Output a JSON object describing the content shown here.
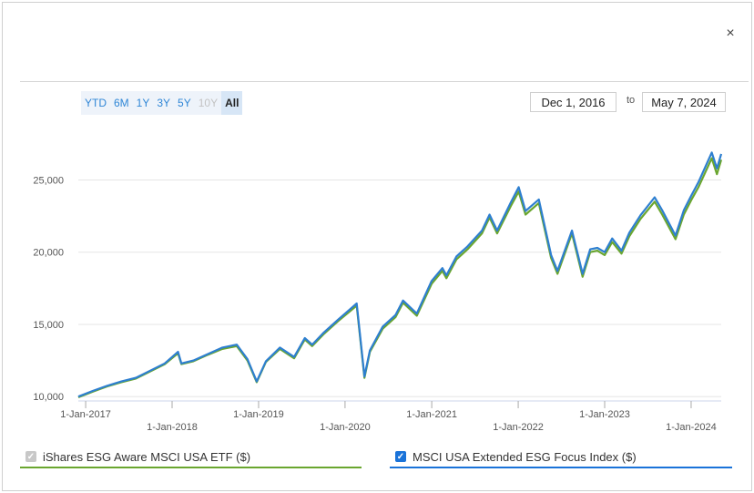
{
  "close_label": "×",
  "range_buttons": [
    {
      "label": "YTD",
      "state": "normal"
    },
    {
      "label": "6M",
      "state": "normal"
    },
    {
      "label": "1Y",
      "state": "normal"
    },
    {
      "label": "3Y",
      "state": "normal"
    },
    {
      "label": "5Y",
      "state": "normal"
    },
    {
      "label": "10Y",
      "state": "disabled"
    },
    {
      "label": "All",
      "state": "active"
    }
  ],
  "date_range": {
    "from": "Dec 1, 2016",
    "to_label": "to",
    "to": "May 7, 2024"
  },
  "legend": {
    "series1_label": "iShares ESG Aware MSCI USA ETF ($)",
    "series2_label": "MSCI USA Extended ESG Focus Index ($)"
  },
  "colors": {
    "series1": "#6aa62f",
    "series2": "#2e7fd0",
    "grid": "#e6e6e6"
  },
  "chart_data": {
    "type": "line",
    "title": "",
    "xlabel": "",
    "ylabel": "",
    "ylim": [
      9700,
      28500
    ],
    "xlim": [
      "2016-12-01",
      "2024-05-07"
    ],
    "yticks": [
      10000,
      15000,
      20000,
      25000
    ],
    "ytick_labels": [
      "10,000",
      "15,000",
      "20,000",
      "25,000"
    ],
    "xticks": [
      "2017-01-01",
      "2018-01-01",
      "2019-01-01",
      "2020-01-01",
      "2021-01-01",
      "2022-01-01",
      "2023-01-01",
      "2024-01-01"
    ],
    "xtick_labels": [
      "1-Jan-2017",
      "1-Jan-2018",
      "1-Jan-2019",
      "1-Jan-2020",
      "1-Jan-2021",
      "1-Jan-2022",
      "1-Jan-2023",
      "1-Jan-2024"
    ],
    "grid": true,
    "legend_position": "bottom",
    "series": [
      {
        "name": "iShares ESG Aware MSCI USA ETF ($)",
        "x": [
          "2016-12-01",
          "2017-02-01",
          "2017-04-01",
          "2017-06-01",
          "2017-08-01",
          "2017-10-01",
          "2017-12-01",
          "2018-01-26",
          "2018-02-09",
          "2018-04-01",
          "2018-06-01",
          "2018-08-01",
          "2018-10-01",
          "2018-11-15",
          "2018-12-24",
          "2019-02-01",
          "2019-04-01",
          "2019-05-31",
          "2019-07-15",
          "2019-08-15",
          "2019-10-01",
          "2019-12-01",
          "2020-02-19",
          "2020-03-23",
          "2020-04-15",
          "2020-06-08",
          "2020-08-01",
          "2020-09-02",
          "2020-10-30",
          "2020-12-31",
          "2021-02-15",
          "2021-03-04",
          "2021-04-15",
          "2021-06-01",
          "2021-08-01",
          "2021-09-02",
          "2021-10-04",
          "2021-12-01",
          "2022-01-03",
          "2022-02-01",
          "2022-03-29",
          "2022-05-20",
          "2022-06-16",
          "2022-08-16",
          "2022-09-30",
          "2022-11-01",
          "2022-12-01",
          "2023-01-01",
          "2023-02-02",
          "2023-03-13",
          "2023-04-15",
          "2023-06-01",
          "2023-07-31",
          "2023-09-01",
          "2023-10-27",
          "2023-12-01",
          "2024-01-01",
          "2024-02-01",
          "2024-03-28",
          "2024-04-19",
          "2024-05-07"
        ],
        "y": [
          9950,
          10350,
          10700,
          11000,
          11250,
          11750,
          12250,
          13000,
          12250,
          12450,
          12900,
          13300,
          13500,
          12500,
          11000,
          12400,
          13300,
          12650,
          13950,
          13500,
          14300,
          15200,
          16300,
          11300,
          13100,
          14700,
          15500,
          16500,
          15600,
          17800,
          18700,
          18200,
          19500,
          20200,
          21300,
          22400,
          21300,
          23200,
          24200,
          22600,
          23400,
          19600,
          18500,
          21300,
          18300,
          20000,
          20100,
          19800,
          20700,
          19900,
          21100,
          22300,
          23500,
          22600,
          20900,
          22600,
          23600,
          24500,
          26500,
          25400,
          26400
        ]
      },
      {
        "name": "MSCI USA Extended ESG Focus Index ($)",
        "x": [
          "2016-12-01",
          "2017-02-01",
          "2017-04-01",
          "2017-06-01",
          "2017-08-01",
          "2017-10-01",
          "2017-12-01",
          "2018-01-26",
          "2018-02-09",
          "2018-04-01",
          "2018-06-01",
          "2018-08-01",
          "2018-10-01",
          "2018-11-15",
          "2018-12-24",
          "2019-02-01",
          "2019-04-01",
          "2019-05-31",
          "2019-07-15",
          "2019-08-15",
          "2019-10-01",
          "2019-12-01",
          "2020-02-19",
          "2020-03-23",
          "2020-04-15",
          "2020-06-08",
          "2020-08-01",
          "2020-09-02",
          "2020-10-30",
          "2020-12-31",
          "2021-02-15",
          "2021-03-04",
          "2021-04-15",
          "2021-06-01",
          "2021-08-01",
          "2021-09-02",
          "2021-10-04",
          "2021-12-01",
          "2022-01-03",
          "2022-02-01",
          "2022-03-29",
          "2022-05-20",
          "2022-06-16",
          "2022-08-16",
          "2022-09-30",
          "2022-11-01",
          "2022-12-01",
          "2023-01-01",
          "2023-02-02",
          "2023-03-13",
          "2023-04-15",
          "2023-06-01",
          "2023-07-31",
          "2023-09-01",
          "2023-10-27",
          "2023-12-01",
          "2024-01-01",
          "2024-02-01",
          "2024-03-28",
          "2024-04-19",
          "2024-05-07"
        ],
        "y": [
          10000,
          10400,
          10750,
          11050,
          11300,
          11800,
          12300,
          13100,
          12300,
          12500,
          12950,
          13400,
          13600,
          12600,
          11050,
          12450,
          13400,
          12750,
          14050,
          13600,
          14400,
          15300,
          16450,
          11400,
          13200,
          14850,
          15650,
          16650,
          15750,
          18000,
          18900,
          18400,
          19700,
          20400,
          21500,
          22600,
          21500,
          23450,
          24500,
          22850,
          23650,
          19800,
          18700,
          21500,
          18500,
          20200,
          20300,
          20000,
          20950,
          20100,
          21350,
          22550,
          23800,
          22900,
          21150,
          22900,
          23900,
          24850,
          26900,
          25800,
          26800
        ]
      }
    ]
  }
}
